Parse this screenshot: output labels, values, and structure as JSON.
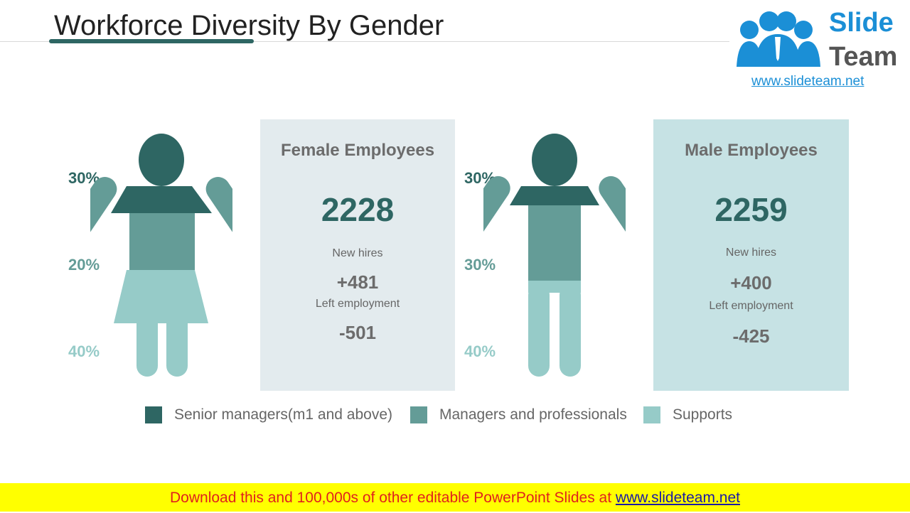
{
  "title": "Workforce Diversity By Gender",
  "logo": {
    "word1": "Slide",
    "word2": "Team",
    "url": "www.slideteam.net"
  },
  "colors": {
    "senior": "#2e6663",
    "managers": "#649c97",
    "supports": "#96cbc8",
    "card_female": "#e3ebee",
    "card_male": "#c6e2e4"
  },
  "chart_data": {
    "type": "infographic",
    "title": "Workforce Diversity By Gender",
    "legend": [
      {
        "name": "Senior managers(m1 and above)",
        "color": "#2e6663"
      },
      {
        "name": "Managers and professionals",
        "color": "#649c97"
      },
      {
        "name": "Supports",
        "color": "#96cbc8"
      }
    ],
    "groups": [
      {
        "name": "Female Employees",
        "total": "2228",
        "shares": {
          "senior": "30%",
          "managers": "20%",
          "supports": "40%"
        },
        "new_hires_label": "New hires",
        "new_hires": "+481",
        "left_label": "Left employment",
        "left": "-501"
      },
      {
        "name": "Male Employees",
        "total": "2259",
        "shares": {
          "senior": "30%",
          "managers": "30%",
          "supports": "40%"
        },
        "new_hires_label": "New hires",
        "new_hires": "+400",
        "left_label": "Left employment",
        "left": "-425"
      }
    ]
  },
  "footer": {
    "text": "Download this and 100,000s of other editable PowerPoint Slides at ",
    "link": "www.slideteam.net"
  }
}
